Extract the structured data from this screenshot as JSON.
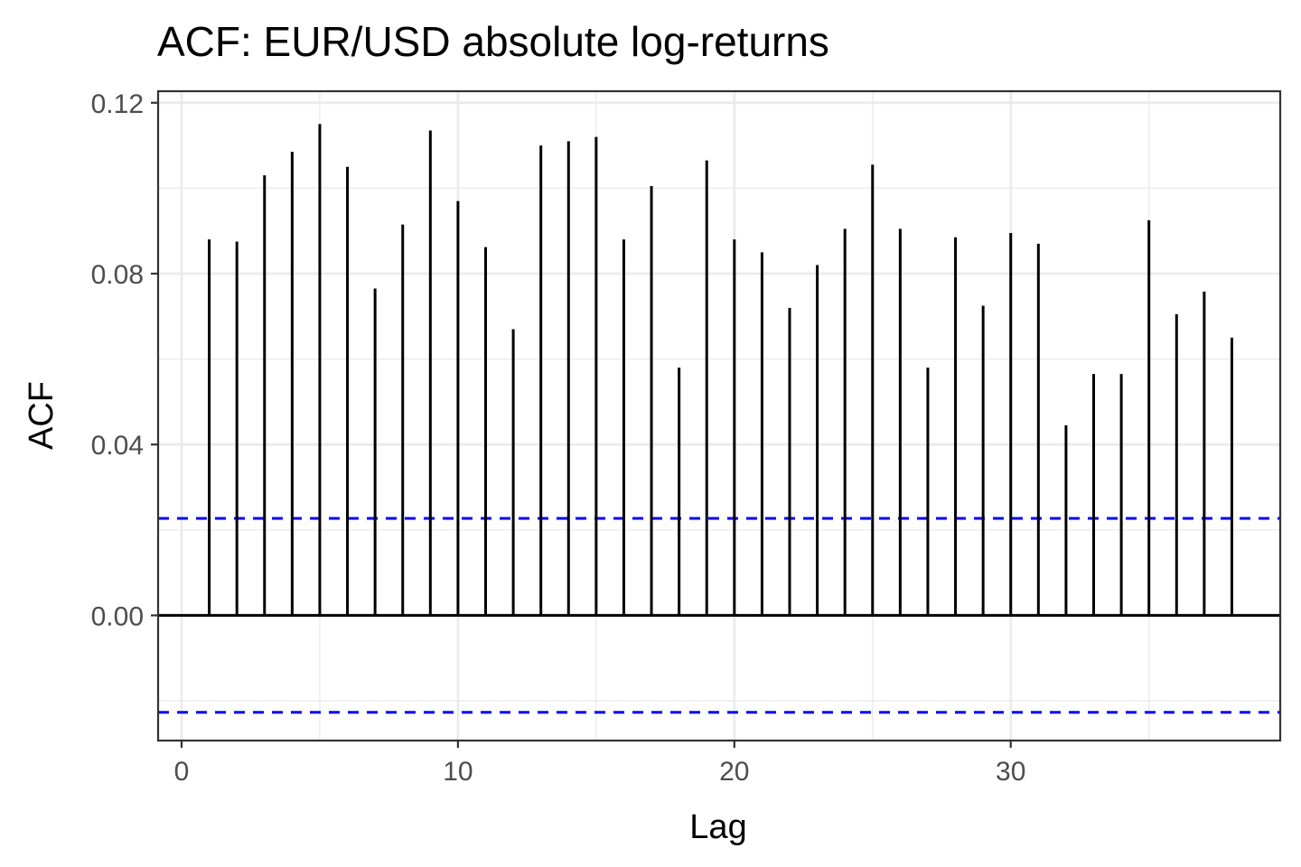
{
  "chart_data": {
    "type": "bar",
    "title": "ACF: EUR/USD absolute log-returns",
    "xlabel": "Lag",
    "ylabel": "ACF",
    "x": [
      1,
      2,
      3,
      4,
      5,
      6,
      7,
      8,
      9,
      10,
      11,
      12,
      13,
      14,
      15,
      16,
      17,
      18,
      19,
      20,
      21,
      22,
      23,
      24,
      25,
      26,
      27,
      28,
      29,
      30,
      31,
      32,
      33,
      34,
      35,
      36,
      37,
      38
    ],
    "values": [
      0.088,
      0.0875,
      0.103,
      0.1085,
      0.115,
      0.105,
      0.0765,
      0.0915,
      0.1135,
      0.097,
      0.0862,
      0.067,
      0.11,
      0.111,
      0.112,
      0.088,
      0.1005,
      0.058,
      0.1065,
      0.088,
      0.085,
      0.072,
      0.082,
      0.0905,
      0.1055,
      0.0905,
      0.058,
      0.0885,
      0.0725,
      0.0895,
      0.087,
      0.0445,
      0.0565,
      0.0565,
      0.0925,
      0.0705,
      0.0758,
      0.065
    ],
    "confidence_bound": 0.0227,
    "xlim": [
      -0.85,
      39.75
    ],
    "ylim": [
      -0.0293,
      0.1227
    ],
    "xticks": [
      0,
      10,
      20,
      30
    ],
    "xtick_labels": [
      "0",
      "10",
      "20",
      "30"
    ],
    "yticks": [
      0.0,
      0.04,
      0.08,
      0.12
    ],
    "ytick_labels": [
      "0.00",
      "0.04",
      "0.08",
      "0.12"
    ],
    "grid": true,
    "colors": {
      "bars": "#000000",
      "confidence": "#0000ff",
      "grid": "#ebebeb",
      "panel_border": "#333333"
    }
  }
}
